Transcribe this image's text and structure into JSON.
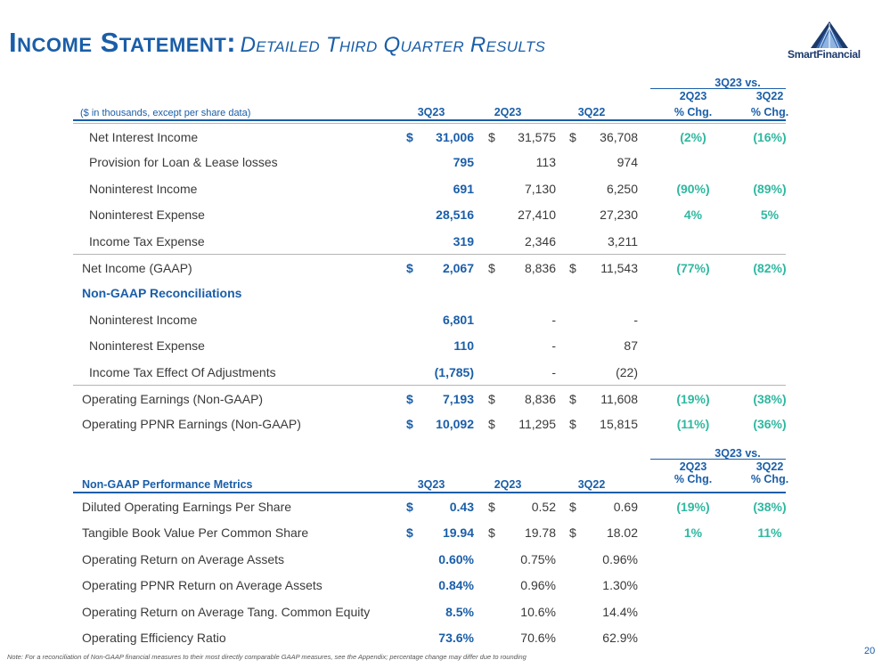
{
  "title": {
    "main": "Income Statement:",
    "sub": "Detailed Third Quarter Results"
  },
  "logo": {
    "text": "SmartFinancial"
  },
  "income": {
    "header": {
      "caption": "($ in thousands, except per share data)",
      "vs": "3Q23 vs.",
      "c1": "3Q23",
      "c2": "2Q23",
      "c3": "3Q22",
      "c4a": "2Q23",
      "c4b": "% Chg.",
      "c5a": "3Q22",
      "c5b": "% Chg."
    },
    "rows": [
      {
        "label": "Net Interest Income",
        "d1": "$",
        "v1": "31,006",
        "d2": "$",
        "v2": "31,575",
        "d3": "$",
        "v3": "36,708",
        "c1": "(2%)",
        "c2": "(16%)"
      },
      {
        "label": "Provision for Loan & Lease losses",
        "d1": "",
        "v1": "795",
        "d2": "",
        "v2": "113",
        "d3": "",
        "v3": "974",
        "c1": "",
        "c2": ""
      },
      {
        "label": "Noninterest Income",
        "d1": "",
        "v1": "691",
        "d2": "",
        "v2": "7,130",
        "d3": "",
        "v3": "6,250",
        "c1": "(90%)",
        "c2": "(89%)"
      },
      {
        "label": "Noninterest Expense",
        "d1": "",
        "v1": "28,516",
        "d2": "",
        "v2": "27,410",
        "d3": "",
        "v3": "27,230",
        "c1": "4%",
        "c2": "5%"
      },
      {
        "label": "Income Tax Expense",
        "d1": "",
        "v1": "319",
        "d2": "",
        "v2": "2,346",
        "d3": "",
        "v3": "3,211",
        "c1": "",
        "c2": ""
      },
      {
        "label": "Net Income (GAAP)",
        "d1": "$",
        "v1": "2,067",
        "d2": "$",
        "v2": "8,836",
        "d3": "$",
        "v3": "11,543",
        "c1": "(77%)",
        "c2": "(82%)"
      },
      {
        "label": "Non-GAAP Reconciliations",
        "d1": "",
        "v1": "",
        "d2": "",
        "v2": "",
        "d3": "",
        "v3": "",
        "c1": "",
        "c2": ""
      },
      {
        "label": "Noninterest Income",
        "d1": "",
        "v1": "6,801",
        "d2": "",
        "v2": "-",
        "d3": "",
        "v3": "-",
        "c1": "",
        "c2": ""
      },
      {
        "label": "Noninterest Expense",
        "d1": "",
        "v1": "110",
        "d2": "",
        "v2": "-",
        "d3": "",
        "v3": "87",
        "c1": "",
        "c2": ""
      },
      {
        "label": "Income Tax Effect Of Adjustments",
        "d1": "",
        "v1": "(1,785)",
        "d2": "",
        "v2": "-",
        "d3": "",
        "v3": "(22)",
        "c1": "",
        "c2": ""
      },
      {
        "label": "Operating Earnings (Non-GAAP)",
        "d1": "$",
        "v1": "7,193",
        "d2": "$",
        "v2": "8,836",
        "d3": "$",
        "v3": "11,608",
        "c1": "(19%)",
        "c2": "(38%)"
      },
      {
        "label": "Operating PPNR Earnings (Non-GAAP)",
        "d1": "$",
        "v1": "10,092",
        "d2": "$",
        "v2": "11,295",
        "d3": "$",
        "v3": "15,815",
        "c1": "(11%)",
        "c2": "(36%)"
      }
    ]
  },
  "metrics": {
    "header": {
      "caption": "Non-GAAP Performance Metrics",
      "vs": "3Q23 vs.",
      "c1": "3Q23",
      "c2": "2Q23",
      "c3": "3Q22",
      "c4a": "2Q23",
      "c4b": "% Chg.",
      "c5a": "3Q22",
      "c5b": "% Chg."
    },
    "rows": [
      {
        "label": "Diluted Operating Earnings Per Share",
        "d1": "$",
        "v1": "0.43",
        "d2": "$",
        "v2": "0.52",
        "d3": "$",
        "v3": "0.69",
        "c1": "(19%)",
        "c2": "(38%)"
      },
      {
        "label": "Tangible Book Value Per Common Share",
        "d1": "$",
        "v1": "19.94",
        "d2": "$",
        "v2": "19.78",
        "d3": "$",
        "v3": "18.02",
        "c1": "1%",
        "c2": "11%"
      },
      {
        "label": "Operating Return on Average Assets",
        "d1": "",
        "v1": "0.60%",
        "d2": "",
        "v2": "0.75%",
        "d3": "",
        "v3": "0.96%",
        "c1": "",
        "c2": ""
      },
      {
        "label": "Operating PPNR Return on Average Assets",
        "d1": "",
        "v1": "0.84%",
        "d2": "",
        "v2": "0.96%",
        "d3": "",
        "v3": "1.30%",
        "c1": "",
        "c2": ""
      },
      {
        "label": "Operating Return on Average Tang. Common Equity",
        "d1": "",
        "v1": "8.5%",
        "d2": "",
        "v2": "10.6%",
        "d3": "",
        "v3": "14.4%",
        "c1": "",
        "c2": ""
      },
      {
        "label": "Operating Efficiency Ratio",
        "d1": "",
        "v1": "73.6%",
        "d2": "",
        "v2": "70.6%",
        "d3": "",
        "v3": "62.9%",
        "c1": "",
        "c2": ""
      }
    ]
  },
  "footer": {
    "note": "Note: For a reconciliation of Non-GAAP financial measures to their most directly comparable GAAP measures, see the Appendix; percentage change may differ due to rounding",
    "page": "20"
  }
}
